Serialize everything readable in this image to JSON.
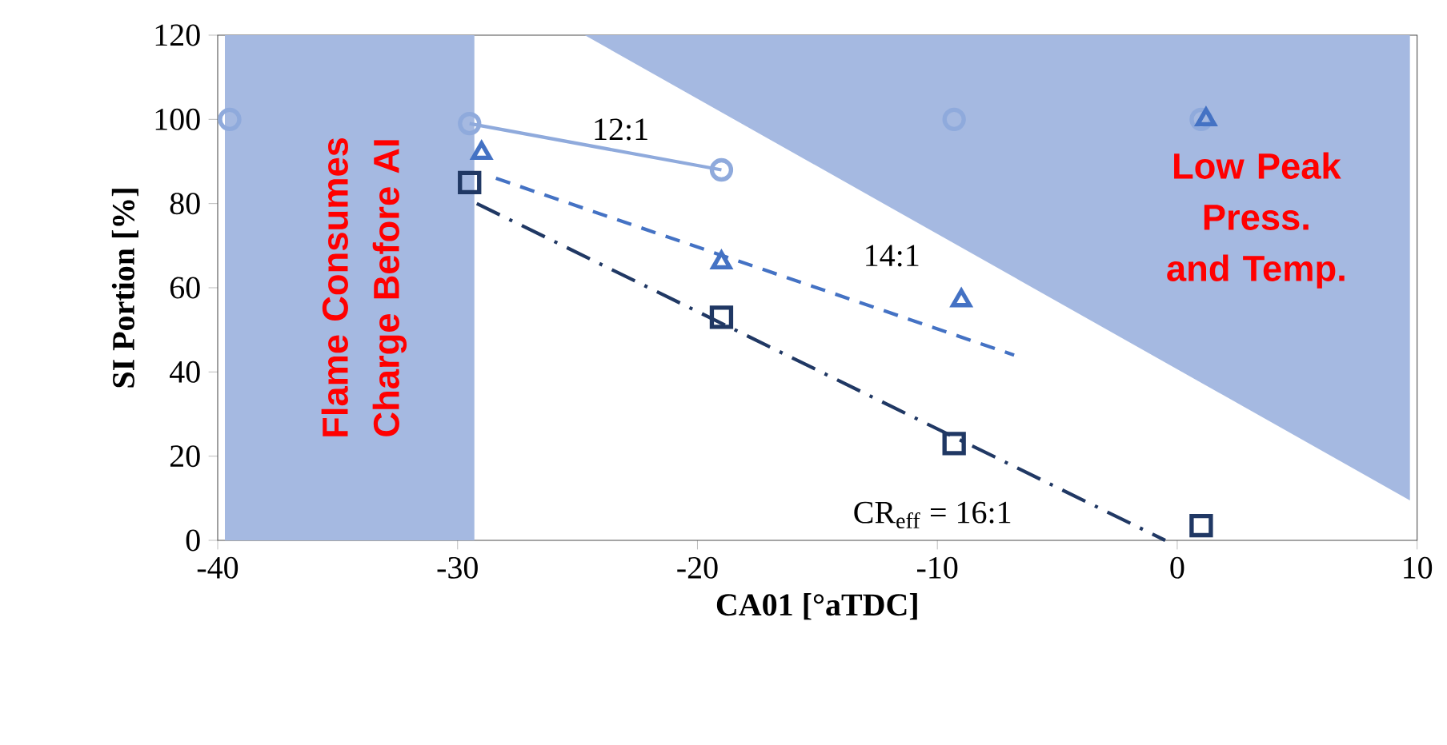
{
  "chart_data": {
    "type": "scatter",
    "xlabel": "CA01 [°aTDC]",
    "ylabel": "SI Portion [%]",
    "xlim": [
      -40,
      10
    ],
    "xticks": [
      -40,
      -30,
      -20,
      -10,
      0,
      10
    ],
    "ylim": [
      0,
      120
    ],
    "yticks": [
      0,
      20,
      40,
      60,
      80,
      100,
      120
    ],
    "grid": false,
    "series": [
      {
        "type": "area",
        "color": "#a5b9e1",
        "x": [
          -24.7,
          9.7
        ],
        "values": [
          120,
          9.5
        ]
      },
      {
        "type": "line",
        "marker": "none",
        "line_style": "solid",
        "color": "#8faadc",
        "x": [
          -29.5,
          -19
        ],
        "values": [
          99,
          88
        ]
      },
      {
        "type": "line",
        "marker": "none",
        "line_style": "dashed",
        "color": "#4472c4",
        "x": [
          -28.4,
          -6.8
        ],
        "values": [
          86,
          44
        ]
      },
      {
        "type": "line",
        "marker": "none",
        "line_style": "dashdot",
        "color": "#203864",
        "x": [
          -29.2,
          -0.5
        ],
        "values": [
          80,
          0
        ]
      },
      {
        "marker": "circle",
        "color": "#8faadc",
        "x": [
          -39.5,
          -29.5,
          -19,
          -9.3,
          1
        ],
        "values": [
          100,
          99,
          88,
          100,
          100
        ]
      },
      {
        "marker": "triangle",
        "color": "#4472c4",
        "x": [
          -29,
          -19,
          -9,
          1.2
        ],
        "values": [
          92,
          66,
          57,
          100
        ]
      },
      {
        "marker": "square",
        "color": "#203864",
        "x": [
          -29.5,
          -19,
          -9.3,
          1
        ],
        "values": [
          85,
          53,
          23,
          3.5
        ]
      }
    ],
    "bands": [
      {
        "axis": "x",
        "from": -39.7,
        "to": -29.3,
        "color": "#a5b9e1"
      }
    ],
    "annotations": [
      "12:1",
      "14:1",
      "CR$_{eff}$ = 16:1",
      "Flame Consumes Charge Before AI",
      "Low Peak Press. and Temp."
    ]
  }
}
